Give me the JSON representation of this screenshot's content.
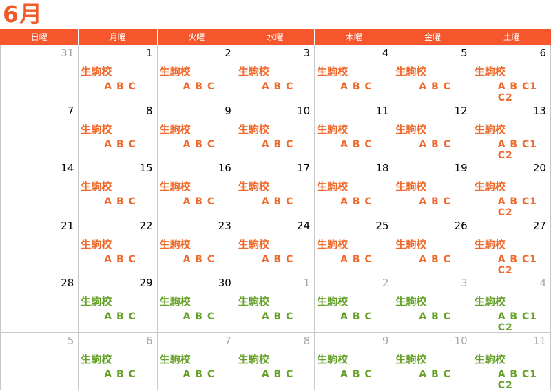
{
  "title": "6月",
  "weekdays": [
    "日曜",
    "月曜",
    "火曜",
    "水曜",
    "木曜",
    "金曜",
    "土曜"
  ],
  "colors": {
    "header_bg": "#f5562b",
    "orange": "#ef6a2c",
    "green": "#66a12a",
    "other_month": "#a6a6a6"
  },
  "weeks": [
    [
      {
        "date": "31",
        "other": true,
        "events": []
      },
      {
        "date": "1",
        "other": false,
        "events": [
          "生駒校",
          "A B C"
        ],
        "color": "orange"
      },
      {
        "date": "2",
        "other": false,
        "events": [
          "生駒校",
          "A B C"
        ],
        "color": "orange"
      },
      {
        "date": "3",
        "other": false,
        "events": [
          "生駒校",
          "A B C"
        ],
        "color": "orange"
      },
      {
        "date": "4",
        "other": false,
        "events": [
          "生駒校",
          "A B C"
        ],
        "color": "orange"
      },
      {
        "date": "5",
        "other": false,
        "events": [
          "生駒校",
          "A B C"
        ],
        "color": "orange"
      },
      {
        "date": "6",
        "other": false,
        "events": [
          "生駒校",
          "A B C1 C2"
        ],
        "color": "orange"
      }
    ],
    [
      {
        "date": "7",
        "other": false,
        "events": []
      },
      {
        "date": "8",
        "other": false,
        "events": [
          "生駒校",
          "A B C"
        ],
        "color": "orange"
      },
      {
        "date": "9",
        "other": false,
        "events": [
          "生駒校",
          "A B C"
        ],
        "color": "orange"
      },
      {
        "date": "10",
        "other": false,
        "events": [
          "生駒校",
          "A B C"
        ],
        "color": "orange"
      },
      {
        "date": "11",
        "other": false,
        "events": [
          "生駒校",
          "A B C"
        ],
        "color": "orange"
      },
      {
        "date": "12",
        "other": false,
        "events": [
          "生駒校",
          "A B C"
        ],
        "color": "orange"
      },
      {
        "date": "13",
        "other": false,
        "events": [
          "生駒校",
          "A B C1 C2"
        ],
        "color": "orange"
      }
    ],
    [
      {
        "date": "14",
        "other": false,
        "events": []
      },
      {
        "date": "15",
        "other": false,
        "events": [
          "生駒校",
          "A B C"
        ],
        "color": "orange"
      },
      {
        "date": "16",
        "other": false,
        "events": [
          "生駒校",
          "A B C"
        ],
        "color": "orange"
      },
      {
        "date": "17",
        "other": false,
        "events": [
          "生駒校",
          "A B C"
        ],
        "color": "orange"
      },
      {
        "date": "18",
        "other": false,
        "events": [
          "生駒校",
          "A B C"
        ],
        "color": "orange"
      },
      {
        "date": "19",
        "other": false,
        "events": [
          "生駒校",
          "A B C"
        ],
        "color": "orange"
      },
      {
        "date": "20",
        "other": false,
        "events": [
          "生駒校",
          "A B C1 C2"
        ],
        "color": "orange"
      }
    ],
    [
      {
        "date": "21",
        "other": false,
        "events": []
      },
      {
        "date": "22",
        "other": false,
        "events": [
          "生駒校",
          "A B C"
        ],
        "color": "orange"
      },
      {
        "date": "23",
        "other": false,
        "events": [
          "生駒校",
          "A B C"
        ],
        "color": "orange"
      },
      {
        "date": "24",
        "other": false,
        "events": [
          "生駒校",
          "A B C"
        ],
        "color": "orange"
      },
      {
        "date": "25",
        "other": false,
        "events": [
          "生駒校",
          "A B C"
        ],
        "color": "orange"
      },
      {
        "date": "26",
        "other": false,
        "events": [
          "生駒校",
          "A B C"
        ],
        "color": "orange"
      },
      {
        "date": "27",
        "other": false,
        "events": [
          "生駒校",
          "A B C1 C2"
        ],
        "color": "orange"
      }
    ],
    [
      {
        "date": "28",
        "other": false,
        "events": []
      },
      {
        "date": "29",
        "other": false,
        "events": [
          "生駒校",
          "A B C"
        ],
        "color": "green"
      },
      {
        "date": "30",
        "other": false,
        "events": [
          "生駒校",
          "A B C"
        ],
        "color": "green"
      },
      {
        "date": "1",
        "other": true,
        "events": [
          "生駒校",
          "A B C"
        ],
        "color": "green"
      },
      {
        "date": "2",
        "other": true,
        "events": [
          "生駒校",
          "A B C"
        ],
        "color": "green"
      },
      {
        "date": "3",
        "other": true,
        "events": [
          "生駒校",
          "A B C"
        ],
        "color": "green"
      },
      {
        "date": "4",
        "other": true,
        "events": [
          "生駒校",
          "A B C1 C2"
        ],
        "color": "green"
      }
    ],
    [
      {
        "date": "5",
        "other": true,
        "events": []
      },
      {
        "date": "6",
        "other": true,
        "events": [
          "生駒校",
          "A B C"
        ],
        "color": "green"
      },
      {
        "date": "7",
        "other": true,
        "events": [
          "生駒校",
          "A B C"
        ],
        "color": "green"
      },
      {
        "date": "8",
        "other": true,
        "events": [
          "生駒校",
          "A B C"
        ],
        "color": "green"
      },
      {
        "date": "9",
        "other": true,
        "events": [
          "生駒校",
          "A B C"
        ],
        "color": "green"
      },
      {
        "date": "10",
        "other": true,
        "events": [
          "生駒校",
          "A B C"
        ],
        "color": "green"
      },
      {
        "date": "11",
        "other": true,
        "events": [
          "生駒校",
          "A B C1 C2"
        ],
        "color": "green"
      }
    ]
  ]
}
